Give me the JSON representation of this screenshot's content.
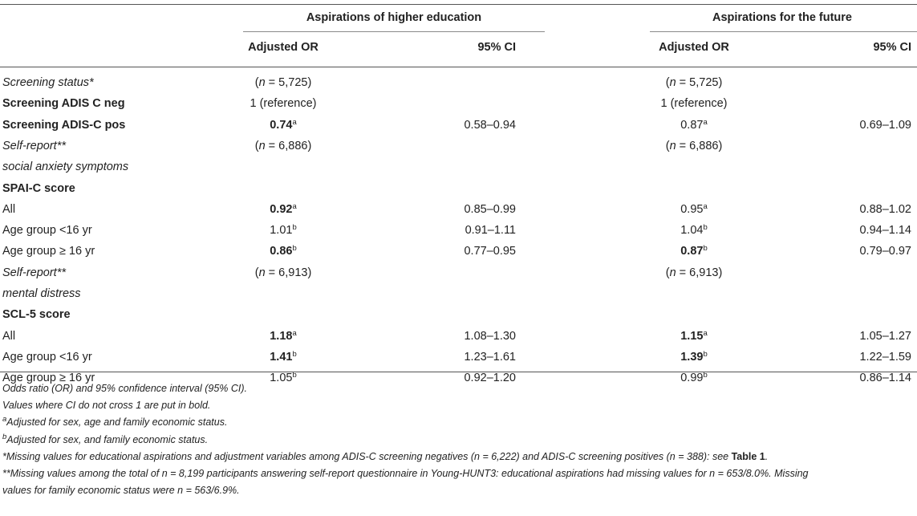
{
  "header": {
    "group1": "Aspirations of higher education",
    "group2": "Aspirations for the future",
    "col_or": "Adjusted OR",
    "col_ci": "95% CI"
  },
  "rows": [
    {
      "label": "Screening status*",
      "label_style": "italic",
      "g1_or": "(n = 5,725)",
      "g1_or_n": true,
      "g1_sup": "",
      "g1_bold": false,
      "g1_ci": "",
      "g2_or": "(n = 5,725)",
      "g2_or_n": true,
      "g2_sup": "",
      "g2_bold": false,
      "g2_ci": ""
    },
    {
      "label": "Screening ADIS C neg",
      "label_style": "bold",
      "g1_or": "1 (reference)",
      "g1_sup": "",
      "g1_bold": false,
      "g1_ci": "",
      "g2_or": "1 (reference)",
      "g2_sup": "",
      "g2_bold": false,
      "g2_ci": ""
    },
    {
      "label": "Screening ADIS-C pos",
      "label_style": "bold",
      "g1_or": "0.74",
      "g1_sup": "a",
      "g1_bold": true,
      "g1_ci": "0.58–0.94",
      "g2_or": "0.87",
      "g2_sup": "a",
      "g2_bold": false,
      "g2_ci": "0.69–1.09"
    },
    {
      "label": "Self-report**",
      "label_style": "italic",
      "g1_or": "(n = 6,886)",
      "g1_or_n": true,
      "g1_sup": "",
      "g1_bold": false,
      "g1_ci": "",
      "g2_or": "(n = 6,886)",
      "g2_or_n": true,
      "g2_sup": "",
      "g2_bold": false,
      "g2_ci": ""
    },
    {
      "label": "social anxiety symptoms",
      "label_style": "italic",
      "g1_or": "",
      "g1_sup": "",
      "g1_bold": false,
      "g1_ci": "",
      "g2_or": "",
      "g2_sup": "",
      "g2_bold": false,
      "g2_ci": ""
    },
    {
      "label": "SPAI-C score",
      "label_style": "bold",
      "g1_or": "",
      "g1_sup": "",
      "g1_bold": false,
      "g1_ci": "",
      "g2_or": "",
      "g2_sup": "",
      "g2_bold": false,
      "g2_ci": ""
    },
    {
      "label": "All",
      "label_style": "normal",
      "g1_or": "0.92",
      "g1_sup": "a",
      "g1_bold": true,
      "g1_ci": "0.85–0.99",
      "g2_or": "0.95",
      "g2_sup": "a",
      "g2_bold": false,
      "g2_ci": "0.88–1.02"
    },
    {
      "label": "Age group <16 yr",
      "label_style": "normal",
      "g1_or": "1.01",
      "g1_sup": "b",
      "g1_bold": false,
      "g1_ci": "0.91–1.11",
      "g2_or": "1.04",
      "g2_sup": "b",
      "g2_bold": false,
      "g2_ci": "0.94–1.14"
    },
    {
      "label": "Age group ≥ 16 yr",
      "label_style": "normal",
      "g1_or": "0.86",
      "g1_sup": "b",
      "g1_bold": true,
      "g1_ci": "0.77–0.95",
      "g2_or": "0.87",
      "g2_sup": "b",
      "g2_bold": true,
      "g2_ci": "0.79–0.97"
    },
    {
      "label": "Self-report**",
      "label_style": "italic",
      "g1_or": "(n = 6,913)",
      "g1_or_n": true,
      "g1_sup": "",
      "g1_bold": false,
      "g1_ci": "",
      "g2_or": "(n = 6,913)",
      "g2_or_n": true,
      "g2_sup": "",
      "g2_bold": false,
      "g2_ci": ""
    },
    {
      "label": "mental distress",
      "label_style": "italic",
      "g1_or": "",
      "g1_sup": "",
      "g1_bold": false,
      "g1_ci": "",
      "g2_or": "",
      "g2_sup": "",
      "g2_bold": false,
      "g2_ci": ""
    },
    {
      "label": "SCL-5 score",
      "label_style": "bold",
      "g1_or": "",
      "g1_sup": "",
      "g1_bold": false,
      "g1_ci": "",
      "g2_or": "",
      "g2_sup": "",
      "g2_bold": false,
      "g2_ci": ""
    },
    {
      "label": "All",
      "label_style": "normal",
      "g1_or": "1.18",
      "g1_sup": "a",
      "g1_bold": true,
      "g1_ci": "1.08–1.30",
      "g2_or": "1.15",
      "g2_sup": "a",
      "g2_bold": true,
      "g2_ci": "1.05–1.27"
    },
    {
      "label": "Age group <16 yr",
      "label_style": "normal",
      "g1_or": "1.41",
      "g1_sup": "b",
      "g1_bold": true,
      "g1_ci": "1.23–1.61",
      "g2_or": "1.39",
      "g2_sup": "b",
      "g2_bold": true,
      "g2_ci": "1.22–1.59"
    },
    {
      "label": "Age group ≥ 16 yr",
      "label_style": "normal",
      "g1_or": "1.05",
      "g1_sup": "b",
      "g1_bold": false,
      "g1_ci": "0.92–1.20",
      "g2_or": "0.99",
      "g2_sup": "b",
      "g2_bold": false,
      "g2_ci": "0.86–1.14"
    }
  ],
  "footnotes": {
    "line1": "Odds ratio (OR) and 95% confidence interval (95% CI).",
    "line2": "Values where CI do not cross 1 are put in bold.",
    "line3_sup": "a",
    "line3": "Adjusted for sex, age and family economic status.",
    "line4_sup": "b",
    "line4": "Adjusted for sex, and family economic status.",
    "line5_pre": "*Missing values for educational aspirations and adjustment variables among ADIS-C screening negatives (n = 6,222) and ADIS-C screening positives (n = 388): see ",
    "line5_ref": "Table 1",
    "line5_post": ".",
    "line6": "**Missing values among the total of n = 8,199 participants answering self-report questionnaire in Young-HUNT3: educational aspirations had missing values for n = 653/8.0%. Missing",
    "line7": "values for family economic status were n = 563/6.9%."
  }
}
